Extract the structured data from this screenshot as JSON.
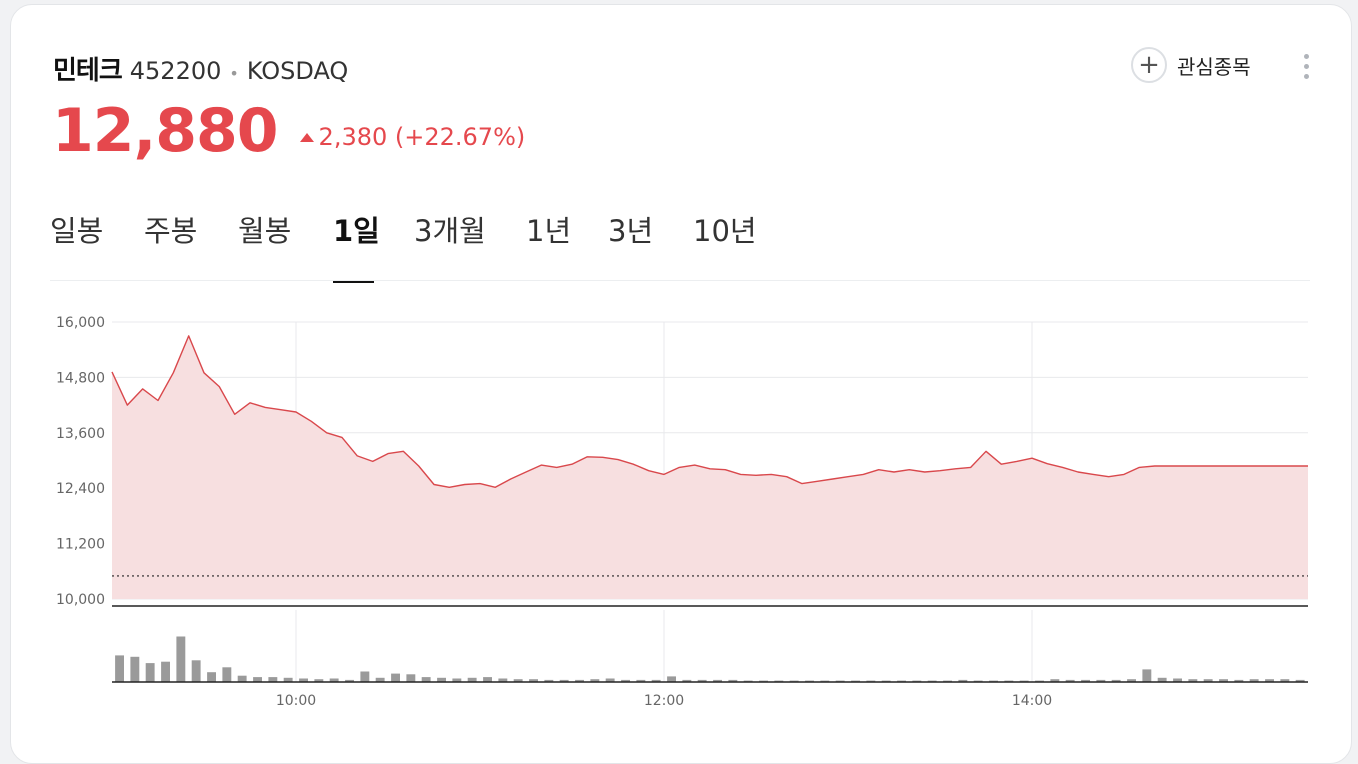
{
  "stock": {
    "name": "민테크",
    "code": "452200",
    "market": "KOSDAQ",
    "price": "12,880",
    "change": "2,380 (+22.67%)",
    "direction": "up"
  },
  "actions": {
    "watchlist_label": "관심종목",
    "watchlist_icon": "plus-icon",
    "more_icon": "more-vertical-icon"
  },
  "tabs": [
    {
      "label": "일봉",
      "active": false
    },
    {
      "label": "주봉",
      "active": false
    },
    {
      "label": "월봉",
      "active": false
    },
    {
      "label": "1일",
      "active": true
    },
    {
      "label": "3개월",
      "active": false
    },
    {
      "label": "1년",
      "active": false
    },
    {
      "label": "3년",
      "active": false
    },
    {
      "label": "10년",
      "active": false
    }
  ],
  "colors": {
    "up": "#e5484d",
    "line": "#d9484c",
    "fill": "#f7dfe0",
    "volume": "#9a9a9a"
  },
  "chart_data": {
    "type": "area",
    "ylim": [
      10000,
      16000
    ],
    "yticks": [
      "16,000",
      "14,800",
      "13,600",
      "12,400",
      "11,200",
      "10,000"
    ],
    "ytick_values": [
      16000,
      14800,
      13600,
      12400,
      11200,
      10000
    ],
    "xticks": [
      "10:00",
      "12:00",
      "14:00"
    ],
    "xtick_values": [
      "10:00",
      "12:00",
      "14:00"
    ],
    "x_start": "09:00",
    "x_end": "15:30",
    "previous_close": 10500,
    "grid": true,
    "series": [
      {
        "x": [
          "09:00",
          "09:05",
          "09:10",
          "09:15",
          "09:20",
          "09:25",
          "09:30",
          "09:35",
          "09:40",
          "09:45",
          "09:50",
          "09:55",
          "10:00",
          "10:05",
          "10:10",
          "10:15",
          "10:20",
          "10:25",
          "10:30",
          "10:35",
          "10:40",
          "10:45",
          "10:50",
          "10:55",
          "11:00",
          "11:05",
          "11:10",
          "11:15",
          "11:20",
          "11:25",
          "11:30",
          "11:35",
          "11:40",
          "11:45",
          "11:50",
          "11:55",
          "12:00",
          "12:05",
          "12:10",
          "12:15",
          "12:20",
          "12:25",
          "12:30",
          "12:35",
          "12:40",
          "12:45",
          "12:50",
          "12:55",
          "13:00",
          "13:05",
          "13:10",
          "13:15",
          "13:20",
          "13:25",
          "13:30",
          "13:35",
          "13:40",
          "13:45",
          "13:50",
          "13:55",
          "14:00",
          "14:05",
          "14:10",
          "14:15",
          "14:20",
          "14:25",
          "14:30",
          "14:35",
          "14:40",
          "14:45",
          "14:50",
          "14:55",
          "15:00",
          "15:05",
          "15:10",
          "15:15",
          "15:20",
          "15:25",
          "15:30"
        ],
        "values": [
          14920,
          14200,
          14550,
          14300,
          14900,
          15700,
          14900,
          14600,
          14000,
          14250,
          14150,
          14100,
          14050,
          13850,
          13600,
          13500,
          13100,
          12980,
          13150,
          13200,
          12880,
          12480,
          12420,
          12480,
          12500,
          12420,
          12600,
          12750,
          12900,
          12850,
          12920,
          13080,
          13070,
          13020,
          12920,
          12780,
          12700,
          12850,
          12900,
          12820,
          12800,
          12700,
          12680,
          12700,
          12650,
          12500,
          12550,
          12600,
          12650,
          12700,
          12800,
          12750,
          12800,
          12750,
          12780,
          12820,
          12850,
          13200,
          12920,
          12980,
          13050,
          12930,
          12850,
          12750,
          12700,
          12650,
          12700,
          12850,
          12880,
          12880,
          12880,
          12880,
          12880,
          12880,
          12880,
          12880,
          12880,
          12880,
          12880
        ]
      }
    ],
    "volume": {
      "x": [
        "09:00",
        "09:05",
        "09:10",
        "09:15",
        "09:20",
        "09:25",
        "09:30",
        "09:35",
        "09:40",
        "09:45",
        "09:50",
        "09:55",
        "10:00",
        "10:05",
        "10:10",
        "10:15",
        "10:20",
        "10:25",
        "10:30",
        "10:35",
        "10:40",
        "10:45",
        "10:50",
        "10:55",
        "11:00",
        "11:05",
        "11:10",
        "11:15",
        "11:20",
        "11:25",
        "11:30",
        "11:35",
        "11:40",
        "11:45",
        "11:50",
        "11:55",
        "12:00",
        "12:05",
        "12:10",
        "12:15",
        "12:20",
        "12:25",
        "12:30",
        "12:35",
        "12:40",
        "12:45",
        "12:50",
        "12:55",
        "13:00",
        "13:05",
        "13:10",
        "13:15",
        "13:20",
        "13:25",
        "13:30",
        "13:35",
        "13:40",
        "13:45",
        "13:50",
        "13:55",
        "14:00",
        "14:05",
        "14:10",
        "14:15",
        "14:20",
        "14:25",
        "14:30",
        "14:35",
        "14:40",
        "14:45",
        "14:50",
        "14:55",
        "15:00",
        "15:05",
        "15:10",
        "15:15",
        "15:20",
        "15:25"
      ],
      "values": [
        38,
        36,
        27,
        29,
        65,
        31,
        14,
        21,
        9,
        7,
        7,
        6,
        5,
        4,
        5,
        3,
        15,
        6,
        12,
        11,
        7,
        6,
        5,
        6,
        7,
        5,
        4,
        4,
        3,
        3,
        3,
        4,
        5,
        3,
        3,
        3,
        8,
        3,
        3,
        3,
        3,
        2,
        2,
        2,
        2,
        2,
        2,
        2,
        2,
        2,
        2,
        2,
        2,
        2,
        2,
        3,
        2,
        2,
        2,
        2,
        2,
        4,
        3,
        3,
        3,
        3,
        4,
        18,
        6,
        5,
        4,
        4,
        4,
        3,
        4,
        4,
        4,
        3
      ]
    }
  }
}
